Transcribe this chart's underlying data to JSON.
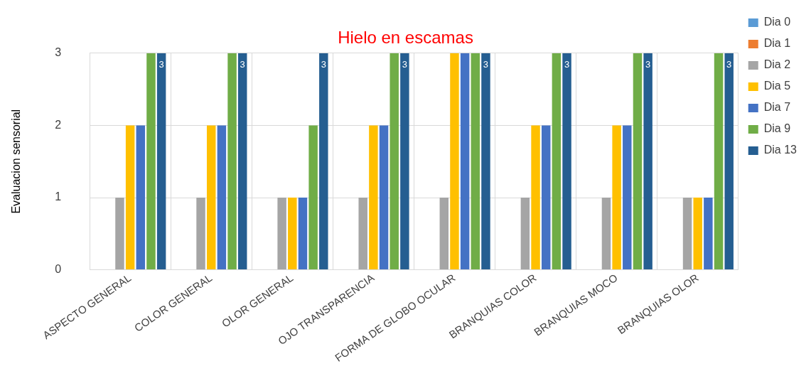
{
  "chart_data": {
    "type": "bar",
    "title": "Hielo en escamas",
    "ylabel": "Evaluacion sensorial",
    "categories": [
      "ASPECTO GENERAL",
      "COLOR GENERAL",
      "OLOR GENERAL",
      "OJO TRANSPARENCIA",
      "FORMA DE GLOBO OCULAR",
      "BRANQUIAS COLOR",
      "BRANQUIAS MOCO",
      "BRANQUIAS OLOR"
    ],
    "series": [
      {
        "name": "Dia 0",
        "color": "#5b9bd5",
        "values": [
          0,
          0,
          0,
          0,
          0,
          0,
          0,
          0
        ]
      },
      {
        "name": "Dia 1",
        "color": "#ed7d31",
        "values": [
          0,
          0,
          0,
          0,
          0,
          0,
          0,
          0
        ]
      },
      {
        "name": "Dia 2",
        "color": "#a5a5a5",
        "values": [
          1,
          1,
          1,
          1,
          1,
          1,
          1,
          1
        ]
      },
      {
        "name": "Dia 5",
        "color": "#ffc000",
        "values": [
          2,
          2,
          1,
          2,
          3,
          2,
          2,
          1
        ]
      },
      {
        "name": "Dia 7",
        "color": "#4472c4",
        "values": [
          2,
          2,
          1,
          2,
          3,
          2,
          2,
          1
        ]
      },
      {
        "name": "Dia 9",
        "color": "#70ad47",
        "values": [
          3,
          3,
          2,
          3,
          3,
          3,
          3,
          3
        ]
      },
      {
        "name": "Dia 13",
        "color": "#255e91",
        "values": [
          3,
          3,
          3,
          3,
          3,
          3,
          3,
          3
        ],
        "value_labels": [
          "3",
          "3",
          "3",
          "3",
          "3",
          "3",
          "3",
          "3"
        ]
      }
    ],
    "ylim": [
      0,
      3
    ],
    "yticks": [
      0,
      1,
      2,
      3
    ],
    "grid": true,
    "legend": "right"
  }
}
